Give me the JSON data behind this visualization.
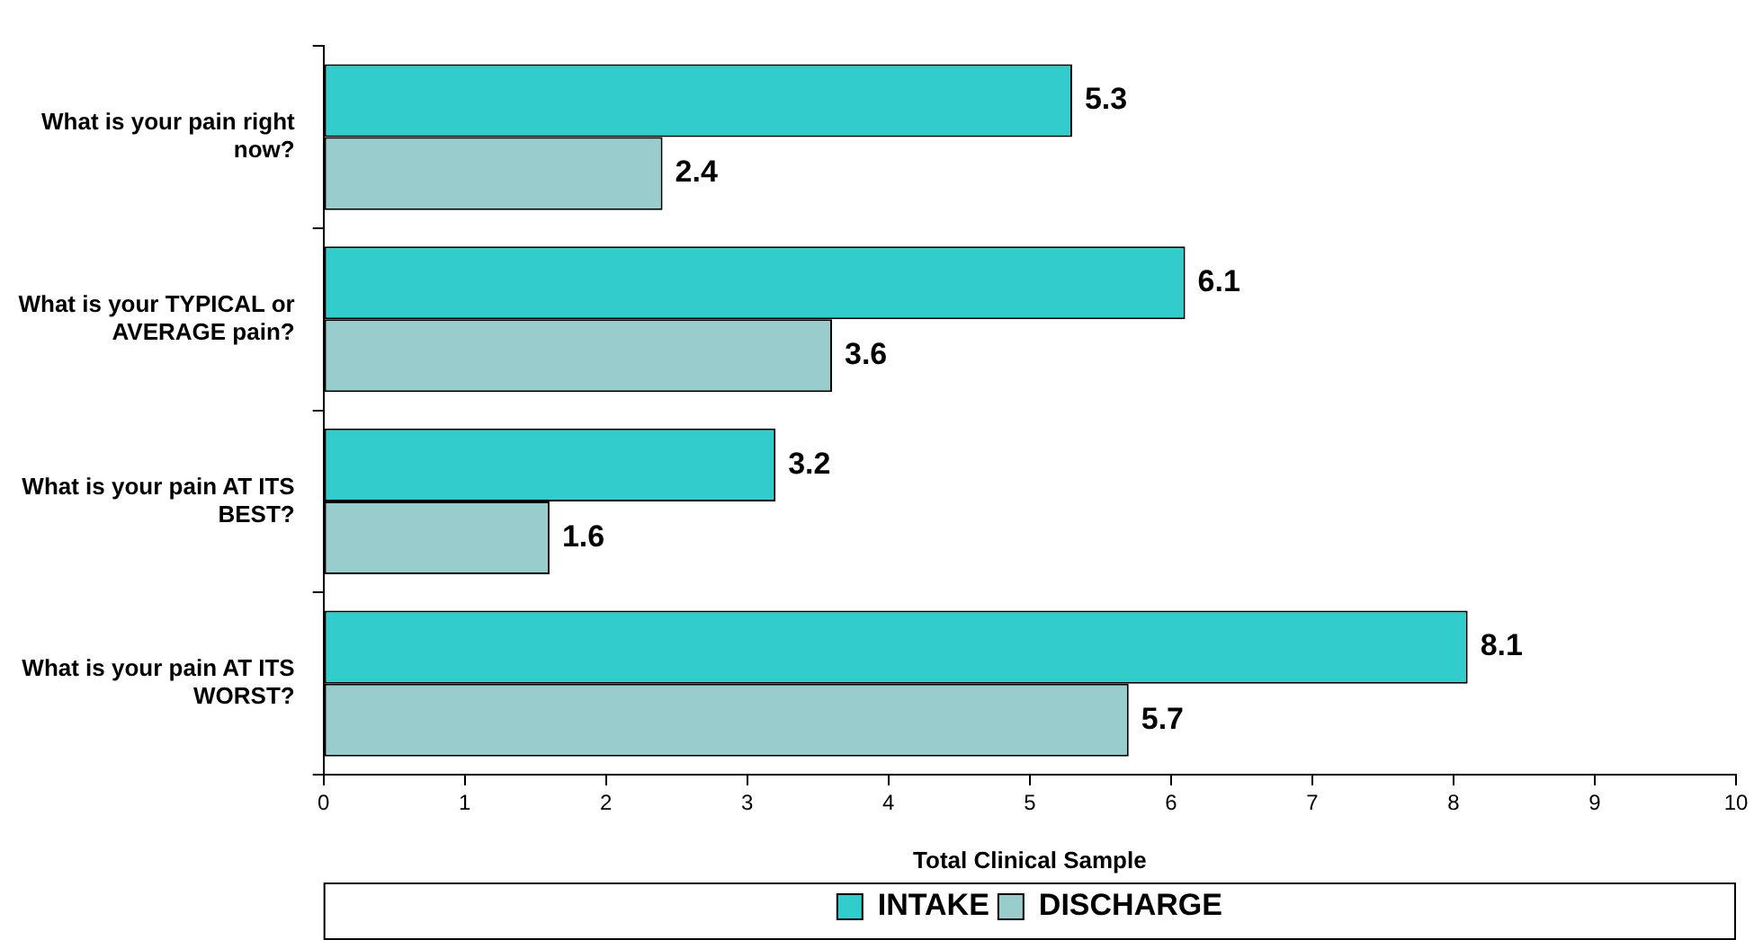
{
  "chart_data": {
    "type": "bar",
    "orientation": "horizontal",
    "xlabel": "Total Clinical Sample",
    "categories": [
      "What is your pain right now?",
      "What is your TYPICAL or AVERAGE pain?",
      "What is your pain AT ITS BEST?",
      "What is your pain AT ITS WORST?"
    ],
    "series": [
      {
        "name": "INTAKE",
        "color": "#33cccc",
        "values": [
          5.3,
          6.1,
          3.2,
          8.1
        ]
      },
      {
        "name": "DISCHARGE",
        "color": "#99cccc",
        "values": [
          2.4,
          3.6,
          1.6,
          5.7
        ]
      }
    ],
    "xlim": [
      0,
      10
    ],
    "xticks": [
      0,
      1,
      2,
      3,
      4,
      5,
      6,
      7,
      8,
      9,
      10
    ],
    "data_labels": true,
    "legend": "bottom",
    "grid": false
  }
}
